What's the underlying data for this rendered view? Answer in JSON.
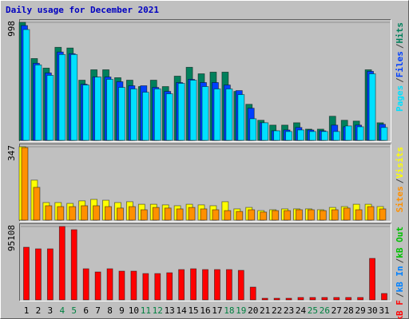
{
  "title": "Daily usage for December 2021",
  "title_color": "#0000c0",
  "legend_separator": "/",
  "weekend_color": "#008040",
  "weekend_days": [
    4,
    5,
    11,
    12,
    18,
    19,
    25,
    26
  ],
  "chart_data": [
    {
      "type": "bar",
      "ylim": [
        0,
        998
      ],
      "yticks": [
        998
      ],
      "grid": true,
      "series": [
        {
          "name": "Hits",
          "color": "#00805c",
          "values": [
            998,
            692,
            611,
            787,
            781,
            509,
            597,
            597,
            530,
            509,
            455,
            509,
            455,
            543,
            618,
            563,
            577,
            577,
            414,
            305,
            170,
            129,
            129,
            149,
            95,
            95,
            204,
            170,
            163,
            597,
            149
          ]
        },
        {
          "name": "Files",
          "color": "#0040ff",
          "values": [
            971,
            652,
            570,
            747,
            733,
            475,
            536,
            536,
            496,
            462,
            462,
            448,
            414,
            489,
            516,
            489,
            489,
            468,
            421,
            272,
            149,
            81,
            88,
            109,
            88,
            81,
            129,
            115,
            129,
            584,
            136
          ]
        },
        {
          "name": "Pages",
          "color": "#00e0ff",
          "values": [
            937,
            638,
            550,
            726,
            726,
            468,
            536,
            516,
            448,
            435,
            407,
            435,
            394,
            482,
            509,
            455,
            435,
            435,
            387,
            183,
            149,
            81,
            75,
            88,
            75,
            75,
            75,
            122,
            115,
            563,
            109
          ]
        }
      ]
    },
    {
      "type": "bar",
      "ylim": [
        0,
        347
      ],
      "yticks": [
        347
      ],
      "grid": true,
      "series": [
        {
          "name": "Visits",
          "color": "#ffff00",
          "values": [
            347,
            189,
            83,
            83,
            79,
            91,
            98,
            94,
            83,
            87,
            75,
            75,
            72,
            68,
            75,
            72,
            68,
            87,
            53,
            60,
            45,
            49,
            53,
            53,
            53,
            49,
            60,
            64,
            75,
            75,
            64
          ]
        },
        {
          "name": "Sites",
          "color": "#ff9000",
          "values": [
            343,
            155,
            68,
            64,
            64,
            68,
            68,
            64,
            57,
            64,
            49,
            60,
            57,
            53,
            60,
            53,
            49,
            45,
            41,
            49,
            38,
            45,
            45,
            49,
            49,
            45,
            49,
            57,
            49,
            64,
            53
          ]
        }
      ]
    },
    {
      "type": "bar",
      "ylim": [
        0,
        95108
      ],
      "yticks": [
        95108
      ],
      "grid": true,
      "categories": [
        "1",
        "2",
        "3",
        "4",
        "5",
        "6",
        "7",
        "8",
        "9",
        "10",
        "11",
        "12",
        "13",
        "14",
        "15",
        "16",
        "17",
        "18",
        "19",
        "20",
        "21",
        "22",
        "23",
        "24",
        "25",
        "26",
        "27",
        "28",
        "29",
        "30",
        "31"
      ],
      "series": [
        {
          "name": "kB F",
          "color": "#ff0000",
          "values": [
            68230,
            66162,
            66162,
            95108,
            90973,
            40319,
            36184,
            40319,
            37218,
            37218,
            34117,
            34117,
            35151,
            39285,
            40319,
            39285,
            39285,
            39285,
            38252,
            16540,
            2067,
            2067,
            2067,
            3101,
            3101,
            3101,
            3101,
            3101,
            3101,
            53757,
            8270
          ]
        }
      ],
      "legend_extra": [
        {
          "name": "kB In",
          "color": "#0080ff"
        },
        {
          "name": "kB Out",
          "color": "#00c000"
        }
      ]
    }
  ]
}
